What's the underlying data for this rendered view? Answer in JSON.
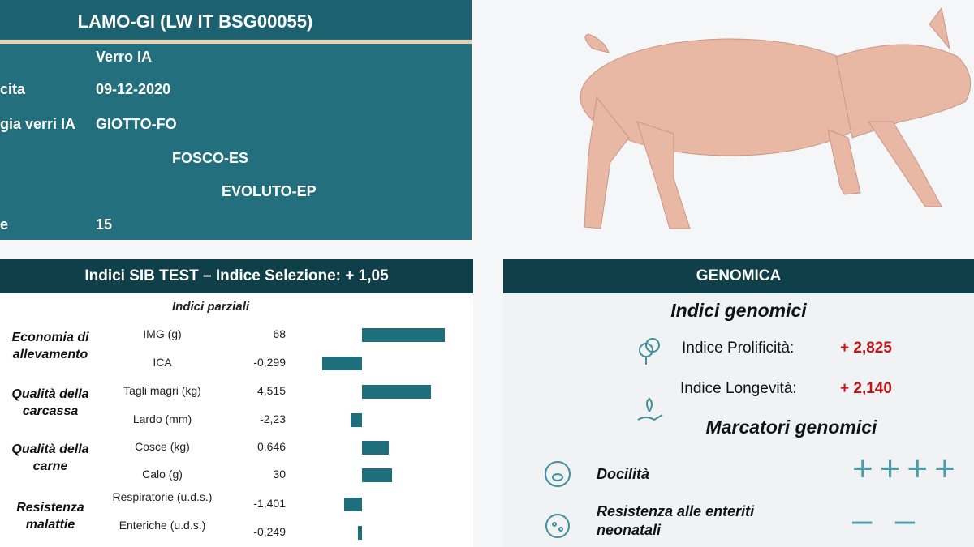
{
  "header": {
    "title": "LAMO-GI (LW IT BSG00055)",
    "rows": [
      [
        "",
        "Verro IA"
      ],
      [
        "cita",
        "09-12-2020"
      ],
      [
        "gia verri IA",
        "GIOTTO-FO"
      ],
      [
        "",
        "FOSCO-ES"
      ],
      [
        "",
        "EVOLUTO-EP"
      ],
      [
        "e",
        "15"
      ]
    ]
  },
  "sib": {
    "title": "Indici SIB TEST – Indice Selezione: + 1,05",
    "subtitle": "Indici parziali",
    "groups": [
      "Economia di allevamento",
      "Qualità della carcassa",
      "Qualità della carne",
      "Resistenza malattie"
    ],
    "rows": [
      {
        "param": "IMG (g)",
        "value": "68",
        "bar": 102
      },
      {
        "param": "ICA",
        "value": "-0,299",
        "bar": -49
      },
      {
        "param": "Tagli magri (kg)",
        "value": "4,515",
        "bar": 85
      },
      {
        "param": "Lardo (mm)",
        "value": "-2,23",
        "bar": -14
      },
      {
        "param": "Cosce (kg)",
        "value": "0,646",
        "bar": 33
      },
      {
        "param": "Calo (g)",
        "value": "30",
        "bar": 37
      },
      {
        "param": "Respiratorie (u.d.s.)",
        "value": "-1,401",
        "bar": -22
      },
      {
        "param": "Enteriche (u.d.s.)",
        "value": "-0,249",
        "bar": -5
      }
    ]
  },
  "genomica": {
    "title": "GENOMICA",
    "indici_title": "Indici genomici",
    "indici": [
      {
        "label": "Indice Prolificità:",
        "value": "+ 2,825"
      },
      {
        "label": "Indice Longevità:",
        "value": "+ 2,140"
      }
    ],
    "marcatori_title": "Marcatori genomici",
    "marcatori": [
      {
        "label": "Docilità",
        "value": "++++"
      },
      {
        "label": "Resistenza alle enteriti neonatali",
        "value": "– –"
      }
    ]
  }
}
